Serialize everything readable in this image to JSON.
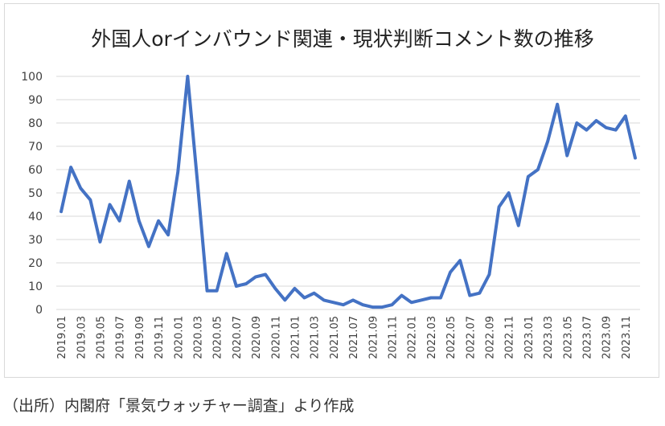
{
  "source_note": "（出所）内閣府「景気ウォッチャー調査」より作成",
  "chart_data": {
    "type": "line",
    "title": "外国人orインバウンド関連・現状判断コメント数の推移",
    "xlabel": "",
    "ylabel": "",
    "ylim": [
      0,
      100
    ],
    "yticks": [
      0,
      10,
      20,
      30,
      40,
      50,
      60,
      70,
      80,
      90,
      100
    ],
    "grid": true,
    "legend": "none",
    "x_tick_labels": [
      "2019.01",
      "2019.03",
      "2019.05",
      "2019.07",
      "2019.09",
      "2019.11",
      "2020.01",
      "2020.03",
      "2020.05",
      "2020.07",
      "2020.09",
      "2020.11",
      "2021.01",
      "2021.03",
      "2021.05",
      "2021.07",
      "2021.09",
      "2021.11",
      "2022.01",
      "2022.03",
      "2022.05",
      "2022.07",
      "2022.09",
      "2022.11",
      "2023.01",
      "2023.03",
      "2023.05",
      "2023.07",
      "2023.09",
      "2023.11"
    ],
    "series": [
      {
        "color": "#4472c4",
        "x": [
          "2019.01",
          "2019.02",
          "2019.03",
          "2019.04",
          "2019.05",
          "2019.06",
          "2019.07",
          "2019.08",
          "2019.09",
          "2019.10",
          "2019.11",
          "2019.12",
          "2020.01",
          "2020.02",
          "2020.03",
          "2020.04",
          "2020.05",
          "2020.06",
          "2020.07",
          "2020.08",
          "2020.09",
          "2020.10",
          "2020.11",
          "2020.12",
          "2021.01",
          "2021.02",
          "2021.03",
          "2021.04",
          "2021.05",
          "2021.06",
          "2021.07",
          "2021.08",
          "2021.09",
          "2021.10",
          "2021.11",
          "2021.12",
          "2022.01",
          "2022.02",
          "2022.03",
          "2022.04",
          "2022.05",
          "2022.06",
          "2022.07",
          "2022.08",
          "2022.09",
          "2022.10",
          "2022.11",
          "2022.12",
          "2023.01",
          "2023.02",
          "2023.03",
          "2023.04",
          "2023.05",
          "2023.06",
          "2023.07",
          "2023.08",
          "2023.09",
          "2023.10",
          "2023.11",
          "2023.12"
        ],
        "values": [
          42,
          61,
          52,
          47,
          29,
          45,
          38,
          55,
          38,
          27,
          38,
          32,
          59,
          100,
          55,
          8,
          8,
          24,
          10,
          11,
          14,
          15,
          9,
          4,
          9,
          5,
          7,
          4,
          3,
          2,
          4,
          2,
          1,
          1,
          2,
          6,
          3,
          4,
          5,
          5,
          16,
          21,
          6,
          7,
          15,
          44,
          50,
          36,
          57,
          60,
          72,
          88,
          66,
          80,
          77,
          81,
          78,
          77,
          83,
          65
        ]
      }
    ]
  }
}
